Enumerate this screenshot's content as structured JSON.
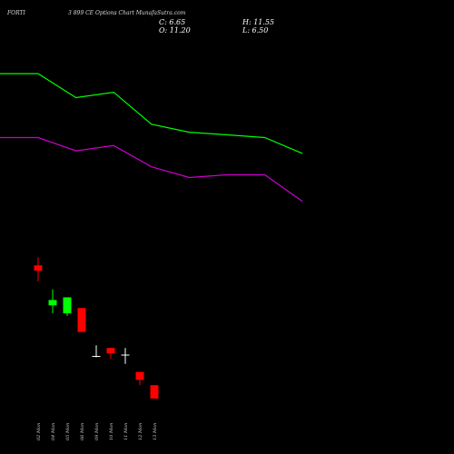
{
  "header": {
    "symbol": "FORTI",
    "title": "3 899 CE Options Chart MunafaSutra.com"
  },
  "ohlc": {
    "c_label": "C: 6.65",
    "h_label": "H: 11.55",
    "o_label": "O: 11.20",
    "l_label": "L: 6.50"
  },
  "colors": {
    "background": "#000000",
    "up": "#00ff00",
    "down": "#ff0000",
    "doji": "#ffffff",
    "upper_band": "#00ff00",
    "lower_band": "#cc00cc"
  },
  "chart_data": {
    "type": "candlestick",
    "x": [
      "02 Mon",
      "04 Mon",
      "05 Mon",
      "06 Mon",
      "09 Mon",
      "10 Mon",
      "11 Mon",
      "12 Mon",
      "13 Mon"
    ],
    "candles": [
      {
        "open": 64,
        "high": 67,
        "low": 58,
        "close": 62
      },
      {
        "open": 49,
        "high": 55,
        "low": 46,
        "close": 51
      },
      {
        "open": 46,
        "high": 52,
        "low": 45,
        "close": 52
      },
      {
        "open": 48,
        "high": 48,
        "low": 39,
        "close": 39
      },
      {
        "open": 30,
        "high": 34,
        "low": 29.5,
        "close": 30
      },
      {
        "open": 33,
        "high": 33,
        "low": 29,
        "close": 31
      },
      {
        "open": 30.5,
        "high": 33,
        "low": 27,
        "close": 30.5
      },
      {
        "open": 24,
        "high": 24,
        "low": 19,
        "close": 21
      },
      {
        "open": 19,
        "high": 19,
        "low": 14,
        "close": 14
      }
    ],
    "upper_band": [
      136,
      136,
      127,
      129,
      117,
      114,
      113,
      112,
      106
    ],
    "lower_band": [
      112,
      112,
      107,
      109,
      101,
      97,
      98,
      98,
      88
    ],
    "ylim": [
      0,
      150
    ]
  }
}
